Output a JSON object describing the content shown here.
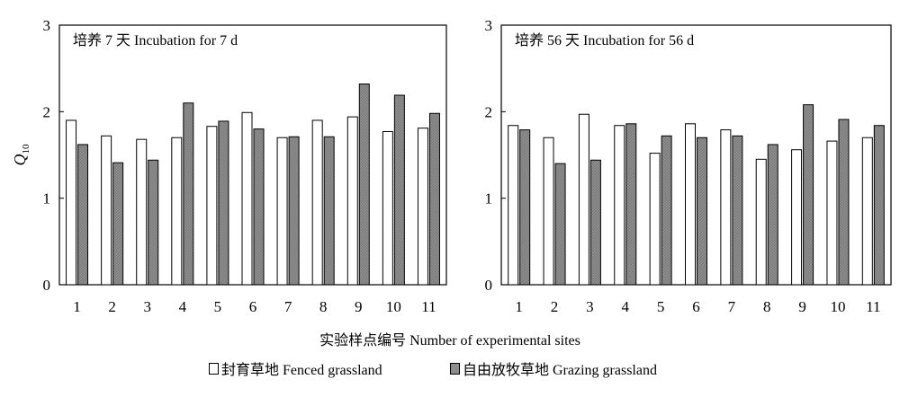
{
  "chart_data": [
    {
      "type": "bar",
      "title": "培养 7 天 Incubation for 7 d",
      "ylabel": "Q10",
      "ylim": [
        0,
        3
      ],
      "yticks": [
        "0",
        "1",
        "2",
        "3"
      ],
      "categories": [
        "1",
        "2",
        "3",
        "4",
        "5",
        "6",
        "7",
        "8",
        "9",
        "10",
        "11"
      ],
      "series": [
        {
          "name": "封育草地 Fenced grassland",
          "color": "#ffffff",
          "values": [
            1.9,
            1.72,
            1.68,
            1.7,
            1.83,
            1.99,
            1.7,
            1.9,
            1.94,
            1.77,
            1.81
          ]
        },
        {
          "name": "自由放牧草地 Grazing grassland",
          "color": "#8c8c8c",
          "values": [
            1.62,
            1.41,
            1.44,
            2.1,
            1.89,
            1.8,
            1.71,
            1.71,
            2.32,
            2.19,
            1.98
          ]
        }
      ]
    },
    {
      "type": "bar",
      "title": "培养 56 天 Incubation for 56 d",
      "ylim": [
        0,
        3
      ],
      "yticks": [
        "0",
        "1",
        "2",
        "3"
      ],
      "categories": [
        "1",
        "2",
        "3",
        "4",
        "5",
        "6",
        "7",
        "8",
        "9",
        "10",
        "11"
      ],
      "series": [
        {
          "name": "封育草地 Fenced grassland",
          "color": "#ffffff",
          "values": [
            1.84,
            1.7,
            1.97,
            1.84,
            1.52,
            1.86,
            1.79,
            1.45,
            1.56,
            1.66,
            1.7
          ]
        },
        {
          "name": "自由放牧草地 Grazing grassland",
          "color": "#8c8c8c",
          "values": [
            1.79,
            1.4,
            1.44,
            1.86,
            1.72,
            1.7,
            1.72,
            1.62,
            2.08,
            1.91,
            1.84
          ]
        }
      ]
    }
  ],
  "xlabel": "实验样点编号 Number of experimental sites",
  "legend": [
    "封育草地 Fenced grassland",
    "自由放牧草地 Grazing grassland"
  ]
}
